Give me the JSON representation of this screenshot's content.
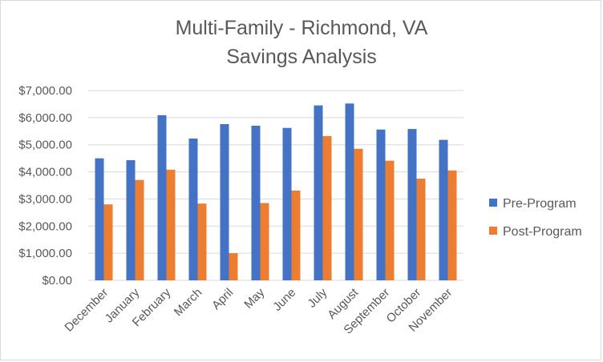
{
  "chart_data": {
    "type": "bar",
    "title": [
      "Multi-Family - Richmond, VA",
      "Savings Analysis"
    ],
    "xlabel": "",
    "ylabel": "",
    "categories": [
      "December",
      "January",
      "February",
      "March",
      "April",
      "May",
      "June",
      "July",
      "August",
      "September",
      "October",
      "November"
    ],
    "series": [
      {
        "name": "Pre-Program",
        "color": "#4472c4",
        "values": [
          4500,
          4430,
          6090,
          5230,
          5760,
          5700,
          5620,
          6450,
          6520,
          5560,
          5580,
          5180
        ]
      },
      {
        "name": "Post-Program",
        "color": "#ed7d31",
        "values": [
          2800,
          3700,
          4080,
          2830,
          1000,
          2850,
          3310,
          5320,
          4850,
          4410,
          3750,
          4050
        ]
      }
    ],
    "ylim": [
      0,
      7000
    ],
    "yticks": [
      0,
      1000,
      2000,
      3000,
      4000,
      5000,
      6000,
      7000
    ],
    "ytick_labels": [
      "$0.00",
      "$1,000.00",
      "$2,000.00",
      "$3,000.00",
      "$4,000.00",
      "$5,000.00",
      "$6,000.00",
      "$7,000.00"
    ],
    "grid": true,
    "legend": "right",
    "gridline_color": "#d9d9d9"
  }
}
